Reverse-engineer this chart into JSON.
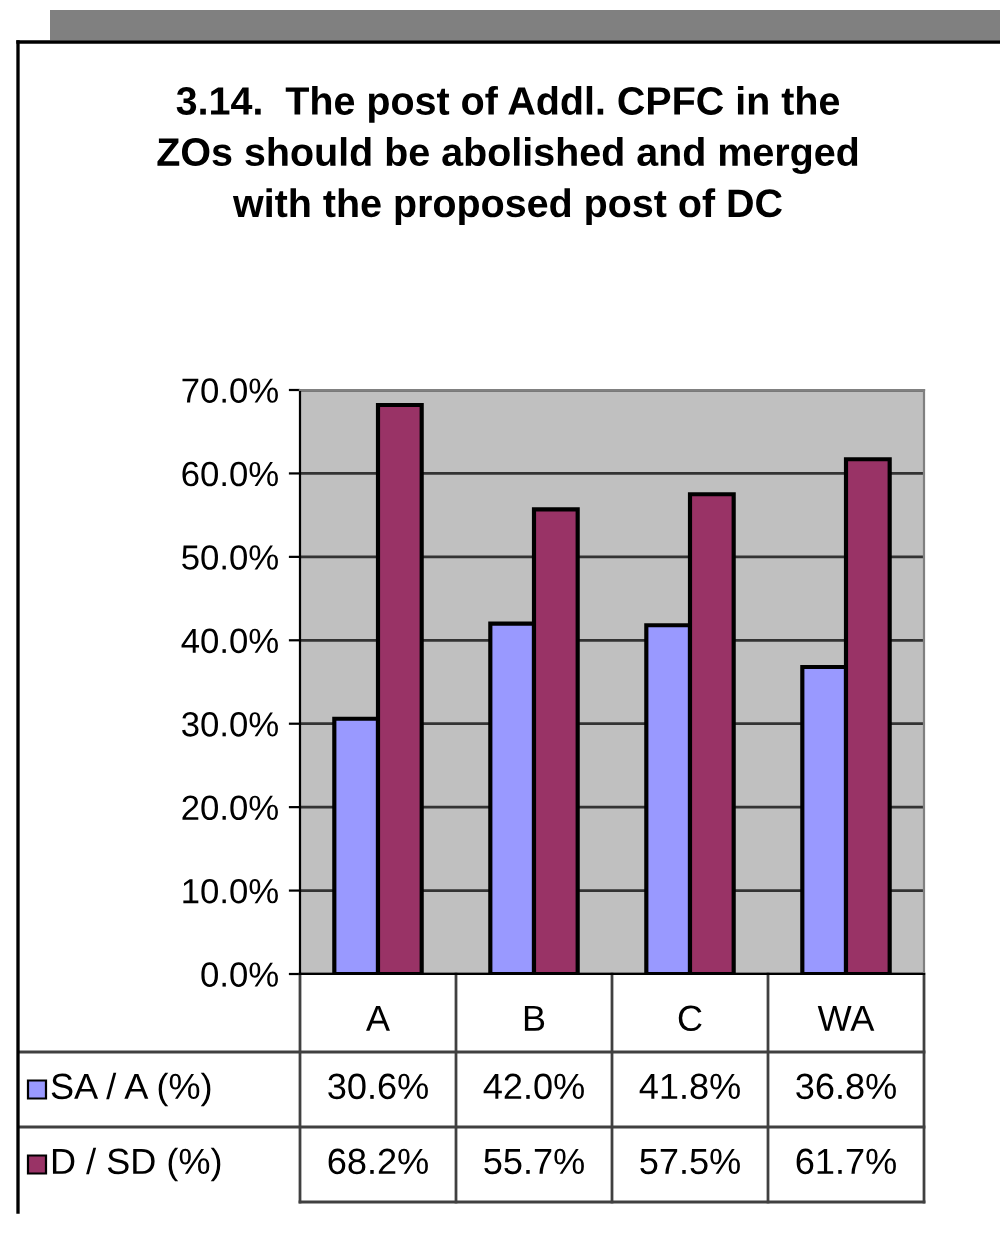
{
  "chart_data": {
    "type": "bar",
    "title": "3.14.  The post of Addl. CPFC in the\nZOs should be abolished and merged\nwith the proposed post of DC",
    "categories": [
      "A",
      "B",
      "C",
      "WA"
    ],
    "series": [
      {
        "name": "SA / A (%)",
        "color": "#9999ff",
        "values": [
          30.6,
          42.0,
          41.8,
          36.8
        ],
        "value_labels": [
          "30.6%",
          "42.0%",
          "41.8%",
          "36.8%"
        ]
      },
      {
        "name": "D / SD (%)",
        "color": "#993366",
        "values": [
          68.2,
          55.7,
          57.5,
          61.7
        ],
        "value_labels": [
          "68.2%",
          "55.7%",
          "57.5%",
          "61.7%"
        ]
      }
    ],
    "ylim": [
      0,
      70
    ],
    "yticks": [
      {
        "value": 0,
        "label": "0.0%"
      },
      {
        "value": 10,
        "label": "10.0%"
      },
      {
        "value": 20,
        "label": "20.0%"
      },
      {
        "value": 30,
        "label": "30.0%"
      },
      {
        "value": 40,
        "label": "40.0%"
      },
      {
        "value": 50,
        "label": "50.0%"
      },
      {
        "value": 60,
        "label": "60.0%"
      },
      {
        "value": 70,
        "label": "70.0%"
      }
    ],
    "grid": "y",
    "legend": "bottom"
  }
}
